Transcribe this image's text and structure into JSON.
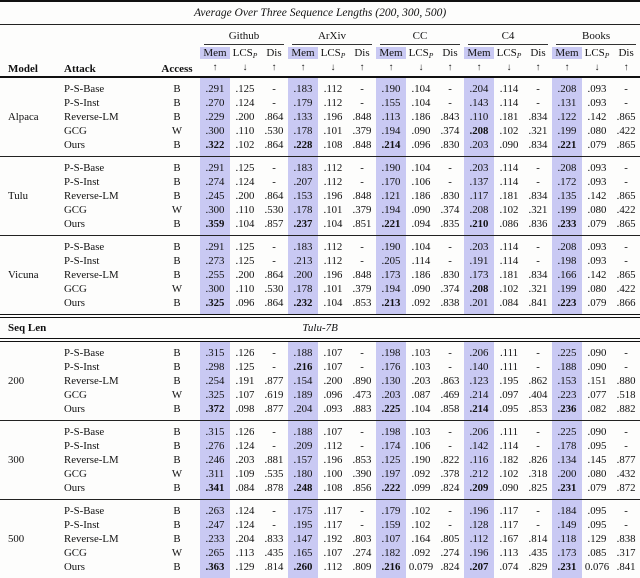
{
  "title": "Average Over Three Sequence Lengths (200, 300, 500)",
  "colors": {
    "mem_highlight": "#c9c9f3",
    "rule": "#111111"
  },
  "header": {
    "model": "Model",
    "attack": "Attack",
    "access": "Access",
    "groups": [
      "Github",
      "ArXiv",
      "CC",
      "C4",
      "Books"
    ],
    "subcolumns": [
      {
        "label": "Mem",
        "subscript": "",
        "arrow": "↑",
        "highlight": true
      },
      {
        "label": "LCS",
        "subscript": "P",
        "arrow": "↓",
        "highlight": false
      },
      {
        "label": "Dis",
        "subscript": "",
        "arrow": "↑",
        "highlight": false
      }
    ]
  },
  "section_divider": {
    "left_label": "Seq Len",
    "center_label": "Tulu-7B"
  },
  "model_blocks": [
    {
      "label": "Alpaca",
      "rows": [
        {
          "attack": "P-S-Base",
          "access": "B",
          "values": [
            ".291",
            ".125",
            "-",
            ".183",
            ".112",
            "-",
            ".190",
            ".104",
            "-",
            ".204",
            ".114",
            "-",
            ".208",
            ".093",
            "-"
          ],
          "bold": []
        },
        {
          "attack": "P-S-Inst",
          "access": "B",
          "values": [
            ".270",
            ".124",
            "-",
            ".179",
            ".112",
            "-",
            ".155",
            ".104",
            "-",
            ".143",
            ".114",
            "-",
            ".131",
            ".093",
            "-"
          ],
          "bold": []
        },
        {
          "attack": "Reverse-LM",
          "access": "B",
          "values": [
            ".229",
            ".200",
            ".864",
            ".133",
            ".196",
            ".848",
            ".113",
            ".186",
            ".843",
            ".110",
            ".181",
            ".834",
            ".122",
            ".142",
            ".865"
          ],
          "bold": []
        },
        {
          "attack": "GCG",
          "access": "W",
          "values": [
            ".300",
            ".110",
            ".530",
            ".178",
            ".101",
            ".379",
            ".194",
            ".090",
            ".374",
            ".208",
            ".102",
            ".321",
            ".199",
            ".080",
            ".422"
          ],
          "bold": [
            9
          ]
        },
        {
          "attack": "Ours",
          "access": "B",
          "values": [
            ".322",
            ".102",
            ".864",
            ".228",
            ".108",
            ".848",
            ".214",
            ".096",
            ".830",
            ".203",
            ".090",
            ".834",
            ".221",
            ".079",
            ".865"
          ],
          "bold": [
            0,
            3,
            6,
            12
          ]
        }
      ]
    },
    {
      "label": "Tulu",
      "rows": [
        {
          "attack": "P-S-Base",
          "access": "B",
          "values": [
            ".291",
            ".125",
            "-",
            ".183",
            ".112",
            "-",
            ".190",
            ".104",
            "-",
            ".203",
            ".114",
            "-",
            ".208",
            ".093",
            "-"
          ],
          "bold": []
        },
        {
          "attack": "P-S-Inst",
          "access": "B",
          "values": [
            ".274",
            ".124",
            "-",
            ".207",
            ".112",
            "-",
            ".170",
            ".106",
            "-",
            ".137",
            ".114",
            "-",
            ".172",
            ".093",
            "-"
          ],
          "bold": []
        },
        {
          "attack": "Reverse-LM",
          "access": "B",
          "values": [
            ".245",
            ".200",
            ".864",
            ".153",
            ".196",
            ".848",
            ".121",
            ".186",
            ".830",
            ".117",
            ".181",
            ".834",
            ".135",
            ".142",
            ".865"
          ],
          "bold": []
        },
        {
          "attack": "GCG",
          "access": "W",
          "values": [
            ".300",
            ".110",
            ".530",
            ".178",
            ".101",
            ".379",
            ".194",
            ".090",
            ".374",
            ".208",
            ".102",
            ".321",
            ".199",
            ".080",
            ".422"
          ],
          "bold": []
        },
        {
          "attack": "Ours",
          "access": "B",
          "values": [
            ".359",
            ".104",
            ".857",
            ".237",
            ".104",
            ".851",
            ".221",
            ".094",
            ".835",
            ".210",
            ".086",
            ".836",
            ".233",
            ".079",
            ".865"
          ],
          "bold": [
            0,
            3,
            6,
            9,
            12
          ]
        }
      ]
    },
    {
      "label": "Vicuna",
      "rows": [
        {
          "attack": "P-S-Base",
          "access": "B",
          "values": [
            ".291",
            ".125",
            "-",
            ".183",
            ".112",
            "-",
            ".190",
            ".104",
            "-",
            ".203",
            ".114",
            "-",
            ".208",
            ".093",
            "-"
          ],
          "bold": []
        },
        {
          "attack": "P-S-Inst",
          "access": "B",
          "values": [
            ".273",
            ".125",
            "-",
            ".213",
            ".112",
            "-",
            ".205",
            ".114",
            "-",
            ".191",
            ".114",
            "-",
            ".198",
            ".093",
            "-"
          ],
          "bold": []
        },
        {
          "attack": "Reverse-LM",
          "access": "B",
          "values": [
            ".255",
            ".200",
            ".864",
            ".200",
            ".196",
            ".848",
            ".173",
            ".186",
            ".830",
            ".173",
            ".181",
            ".834",
            ".166",
            ".142",
            ".865"
          ],
          "bold": []
        },
        {
          "attack": "GCG",
          "access": "W",
          "values": [
            ".300",
            ".110",
            ".530",
            ".178",
            ".101",
            ".379",
            ".194",
            ".090",
            ".374",
            ".208",
            ".102",
            ".321",
            ".199",
            ".080",
            ".422"
          ],
          "bold": [
            9
          ]
        },
        {
          "attack": "Ours",
          "access": "B",
          "values": [
            ".325",
            ".096",
            ".864",
            ".232",
            ".104",
            ".853",
            ".213",
            ".092",
            ".838",
            ".201",
            ".084",
            ".841",
            ".223",
            ".079",
            ".866"
          ],
          "bold": [
            0,
            3,
            6,
            12
          ]
        }
      ]
    }
  ],
  "seqlen_blocks": [
    {
      "label": "200",
      "rows": [
        {
          "attack": "P-S-Base",
          "access": "B",
          "values": [
            ".315",
            ".126",
            "-",
            ".188",
            ".107",
            "-",
            ".198",
            ".103",
            "-",
            ".206",
            ".111",
            "-",
            ".225",
            ".090",
            "-"
          ],
          "bold": []
        },
        {
          "attack": "P-S-Inst",
          "access": "B",
          "values": [
            ".298",
            ".125",
            "-",
            ".216",
            ".107",
            "-",
            ".176",
            ".103",
            "-",
            ".140",
            ".111",
            "-",
            ".188",
            ".090",
            "-"
          ],
          "bold": [
            3
          ]
        },
        {
          "attack": "Reverse-LM",
          "access": "B",
          "values": [
            ".254",
            ".191",
            ".877",
            ".154",
            ".200",
            ".890",
            ".130",
            ".203",
            ".863",
            ".123",
            ".195",
            ".862",
            ".153",
            ".151",
            ".880"
          ],
          "bold": []
        },
        {
          "attack": "GCG",
          "access": "W",
          "values": [
            ".325",
            ".107",
            ".619",
            ".189",
            ".096",
            ".473",
            ".203",
            ".087",
            ".469",
            ".214",
            ".097",
            ".404",
            ".223",
            ".077",
            ".518"
          ],
          "bold": []
        },
        {
          "attack": "Ours",
          "access": "B",
          "values": [
            ".372",
            ".098",
            ".877",
            ".204",
            ".093",
            ".883",
            ".225",
            ".104",
            ".858",
            ".214",
            ".095",
            ".853",
            ".236",
            ".082",
            ".882"
          ],
          "bold": [
            0,
            6,
            9,
            12
          ]
        }
      ]
    },
    {
      "label": "300",
      "rows": [
        {
          "attack": "P-S-Base",
          "access": "B",
          "values": [
            ".315",
            ".126",
            "-",
            ".188",
            ".107",
            "-",
            ".198",
            ".103",
            "-",
            ".206",
            ".111",
            "-",
            ".225",
            ".090",
            "-"
          ],
          "bold": []
        },
        {
          "attack": "P-S-Inst",
          "access": "B",
          "values": [
            ".276",
            ".124",
            "-",
            ".209",
            ".112",
            "-",
            ".174",
            ".106",
            "-",
            ".142",
            ".114",
            "-",
            ".178",
            ".095",
            "-"
          ],
          "bold": []
        },
        {
          "attack": "Reverse-LM",
          "access": "B",
          "values": [
            ".246",
            ".203",
            ".881",
            ".157",
            ".196",
            ".853",
            ".125",
            ".190",
            ".822",
            ".116",
            ".182",
            ".826",
            ".134",
            ".145",
            ".877"
          ],
          "bold": []
        },
        {
          "attack": "GCG",
          "access": "W",
          "values": [
            ".311",
            ".109",
            ".535",
            ".180",
            ".100",
            ".390",
            ".197",
            ".092",
            ".378",
            ".212",
            ".102",
            ".318",
            ".200",
            ".080",
            ".432"
          ],
          "bold": []
        },
        {
          "attack": "Ours",
          "access": "B",
          "values": [
            ".341",
            ".084",
            ".878",
            ".248",
            ".108",
            ".856",
            ".222",
            ".099",
            ".824",
            ".209",
            ".090",
            ".825",
            ".231",
            ".079",
            ".872"
          ],
          "bold": [
            0,
            3,
            6,
            9,
            12
          ]
        }
      ]
    },
    {
      "label": "500",
      "rows": [
        {
          "attack": "P-S-Base",
          "access": "B",
          "values": [
            ".263",
            ".124",
            "-",
            ".175",
            ".117",
            "-",
            ".179",
            ".102",
            "-",
            ".196",
            ".117",
            "-",
            ".184",
            ".095",
            "-"
          ],
          "bold": []
        },
        {
          "attack": "P-S-Inst",
          "access": "B",
          "values": [
            ".247",
            ".124",
            "-",
            ".195",
            ".117",
            "-",
            ".159",
            ".102",
            "-",
            ".128",
            ".117",
            "-",
            ".149",
            ".095",
            "-"
          ],
          "bold": []
        },
        {
          "attack": "Reverse-LM",
          "access": "B",
          "values": [
            ".233",
            ".204",
            ".833",
            ".147",
            ".192",
            ".803",
            ".107",
            ".164",
            ".805",
            ".112",
            ".167",
            ".814",
            ".118",
            ".129",
            ".838"
          ],
          "bold": []
        },
        {
          "attack": "GCG",
          "access": "W",
          "values": [
            ".265",
            ".113",
            ".435",
            ".165",
            ".107",
            ".274",
            ".182",
            ".092",
            ".274",
            ".196",
            ".113",
            ".435",
            ".173",
            ".085",
            ".317"
          ],
          "bold": []
        },
        {
          "attack": "Ours",
          "access": "B",
          "values": [
            ".363",
            ".129",
            ".814",
            ".260",
            ".112",
            ".809",
            ".216",
            "0.079",
            ".824",
            ".207",
            ".074",
            ".829",
            ".231",
            "0.076",
            ".841"
          ],
          "bold": [
            0,
            3,
            6,
            9,
            12
          ]
        }
      ]
    }
  ]
}
